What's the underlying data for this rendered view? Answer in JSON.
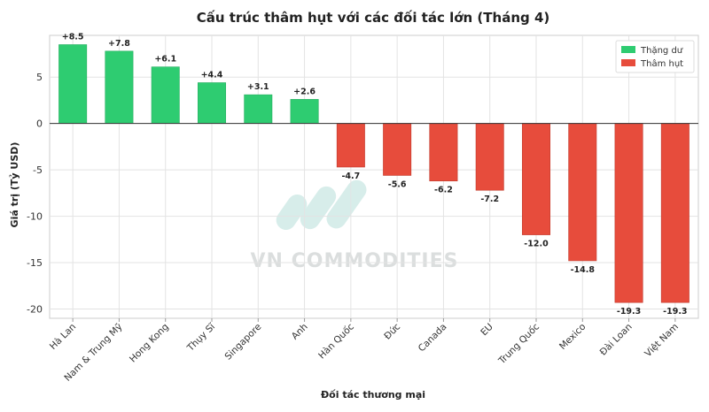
{
  "chart_data": {
    "type": "bar",
    "title": "Cấu trúc thâm hụt với các đối tác lớn (Tháng 4)",
    "xlabel": "Đối tác thương mại",
    "ylabel": "Giá trị (Tỷ USD)",
    "ylim": [
      -21,
      9.5
    ],
    "yticks": [
      5,
      0,
      -5,
      -10,
      -15,
      -20
    ],
    "categories": [
      "Hà Lan",
      "Nam & Trung Mỹ",
      "Hong Kong",
      "Thụy Sĩ",
      "Singapore",
      "Anh",
      "Hàn Quốc",
      "Đức",
      "Canada",
      "EU",
      "Trung Quốc",
      "Mexico",
      "Đài Loan",
      "Việt Nam"
    ],
    "values": [
      8.5,
      7.8,
      6.1,
      4.4,
      3.1,
      2.6,
      -4.7,
      -5.6,
      -6.2,
      -7.2,
      -12.0,
      -14.8,
      -19.3,
      -19.3
    ],
    "data_labels": [
      "+8.5",
      "+7.8",
      "+6.1",
      "+4.4",
      "+3.1",
      "+2.6",
      "-4.7",
      "-5.6",
      "-6.2",
      "-7.2",
      "-12.0",
      "-14.8",
      "-19.3",
      "-19.3"
    ],
    "legend": {
      "position": "top-right",
      "entries": [
        {
          "label": "Thặng dư",
          "color": "#2ecc71"
        },
        {
          "label": "Thâm hụt",
          "color": "#e74c3c"
        }
      ]
    },
    "colors": {
      "positive": "#2ecc71",
      "negative": "#e74c3c"
    },
    "grid": true
  },
  "watermark": "VN COMMODITIES"
}
